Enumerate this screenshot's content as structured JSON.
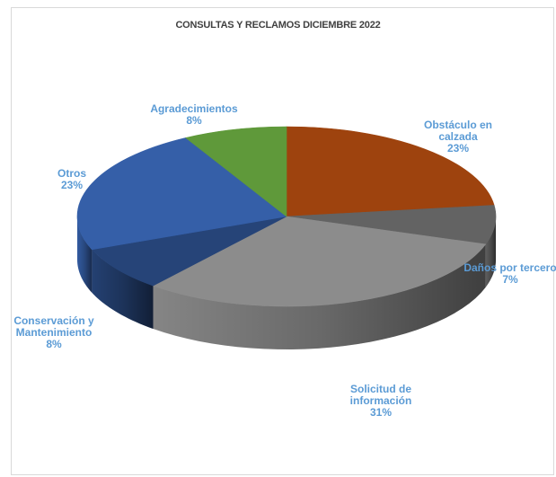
{
  "chart_data": {
    "type": "pie",
    "title": "CONSULTAS Y RECLAMOS DICIEMBRE 2022",
    "three_d": true,
    "slices": [
      {
        "name": "Obstáculo en calzada",
        "label_lines": [
          "Obstáculo en",
          "calzada"
        ],
        "pct_label": "23%",
        "value": 23,
        "color": "#9e430e"
      },
      {
        "name": "Daños por tercero",
        "label_lines": [
          "Daños por tercero"
        ],
        "pct_label": "7%",
        "value": 7,
        "color": "#636363"
      },
      {
        "name": "Solicitud de información",
        "label_lines": [
          "Solicitud de",
          "información"
        ],
        "pct_label": "31%",
        "value": 31,
        "color": "#8c8c8c"
      },
      {
        "name": "Conservación y Mantenimiento",
        "label_lines": [
          "Conservación y",
          "Mantenimiento"
        ],
        "pct_label": "8%",
        "value": 8,
        "color": "#264478"
      },
      {
        "name": "Otros",
        "label_lines": [
          "Otros"
        ],
        "pct_label": "23%",
        "value": 23,
        "color": "#355fa8"
      },
      {
        "name": "Agradecimientos",
        "label_lines": [
          "Agradecimientos"
        ],
        "pct_label": "8%",
        "value": 8,
        "color": "#5f993a"
      }
    ],
    "legend": "none",
    "label_color": "#5b9bd5"
  }
}
